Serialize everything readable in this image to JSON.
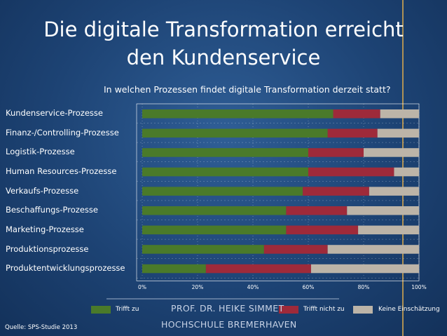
{
  "slide": {
    "title_line1": "Die digitale Transformation erreicht",
    "title_line2": "den Kundenservice",
    "author_line1": "PROF. DR. HEIKE SIMMET",
    "author_line2": "HOCHSCHULE BREMERHAVEN",
    "source": "Quelle: SPS-Studie 2013"
  },
  "colors": {
    "trifft_zu": "#4a7a2a",
    "trifft_nicht_zu": "#9e2a3a",
    "keine_einschaetzung": "#bcb4a8",
    "accent_line": "#c9a050"
  },
  "chart_data": {
    "type": "bar",
    "orientation": "horizontal-stacked-100",
    "title": "In welchen Prozessen findet digitale Transformation derzeit statt?",
    "categories": [
      "Kundenservice-Prozesse",
      "Finanz-/Controlling-Prozesse",
      "Logistik-Prozesse",
      "Human Resources-Prozesse",
      "Verkaufs-Prozesse",
      "Beschaffungs-Prozesse",
      "Marketing-Prozesse",
      "Produktionsprozesse",
      "Produktentwicklungsprozesse"
    ],
    "series": [
      {
        "name": "Trifft zu",
        "values": [
          69,
          67,
          60,
          60,
          58,
          52,
          52,
          44,
          23
        ]
      },
      {
        "name": "Trifft nicht zu",
        "values": [
          17,
          18,
          20,
          31,
          24,
          22,
          26,
          23,
          38
        ]
      },
      {
        "name": "Keine Einschätzung",
        "values": [
          14,
          15,
          20,
          9,
          18,
          26,
          22,
          33,
          39
        ]
      }
    ],
    "x_ticks": [
      "0%",
      "20%",
      "40%",
      "60%",
      "80%",
      "100%"
    ],
    "xlim": [
      0,
      100
    ],
    "legend_position": "bottom"
  }
}
